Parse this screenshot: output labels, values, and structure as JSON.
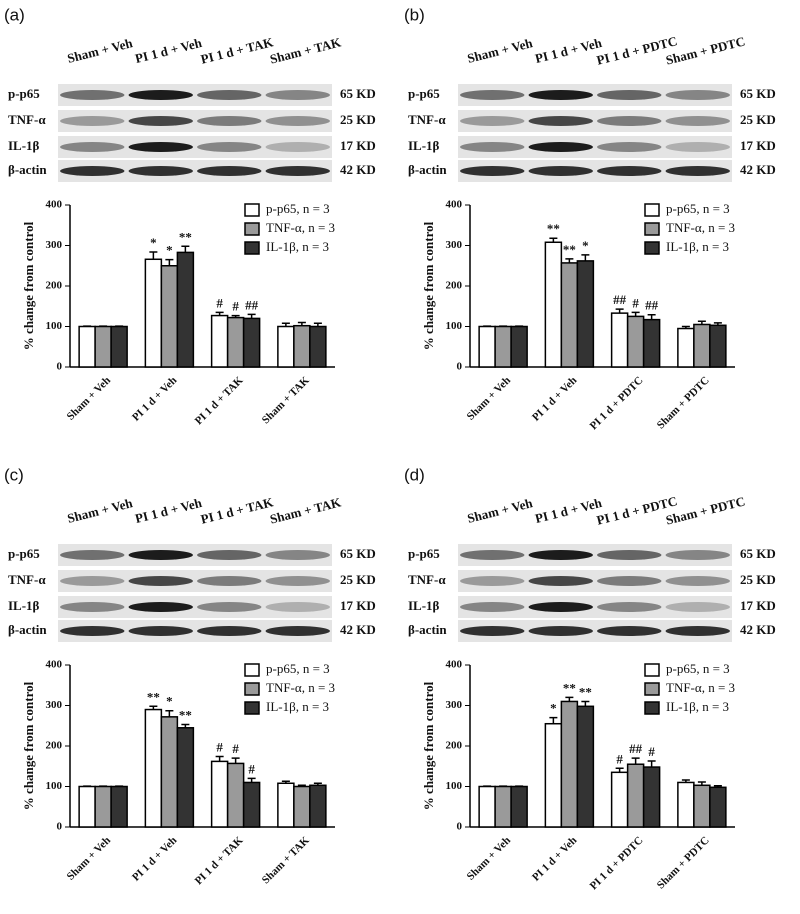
{
  "chart_data": [
    {
      "type": "bar",
      "panel": "(a)",
      "blot": {
        "lanes": [
          "Sham + Veh",
          "PI 1 d + Veh",
          "PI 1 d + TAK",
          "Sham + TAK"
        ],
        "rows": [
          "p-p65",
          "TNF-α",
          "IL-1β",
          "β-actin"
        ],
        "sizes": [
          "65 KD",
          "25 KD",
          "17 KD",
          "42 KD"
        ]
      },
      "ylabel": "% change from control",
      "categories": [
        "Sham + Veh",
        "PI 1 d + Veh",
        "PI 1 d + TAK",
        "Sham + TAK"
      ],
      "ylim": [
        0,
        400
      ],
      "yticks": [
        0,
        100,
        200,
        300,
        400
      ],
      "series": [
        {
          "name": "p-p65, n = 3",
          "color": "#ffffff",
          "values": [
            100,
            266,
            127,
            100
          ],
          "errors": [
            1,
            18,
            8,
            8
          ],
          "annotations": [
            null,
            "*",
            "#",
            null
          ]
        },
        {
          "name": "TNF-α, n = 3",
          "color": "#9a9a9a",
          "values": [
            100,
            250,
            122,
            102
          ],
          "errors": [
            1,
            15,
            5,
            8
          ],
          "annotations": [
            null,
            "*",
            "#",
            null
          ]
        },
        {
          "name": "IL-1β, n = 3",
          "color": "#333333",
          "values": [
            100,
            283,
            120,
            100
          ],
          "errors": [
            1,
            15,
            10,
            8
          ],
          "annotations": [
            null,
            "**",
            "##",
            null
          ]
        }
      ]
    },
    {
      "type": "bar",
      "panel": "(b)",
      "blot": {
        "lanes": [
          "Sham + Veh",
          "PI 1 d + Veh",
          "PI 1 d + PDTC",
          "Sham + PDTC"
        ],
        "rows": [
          "p-p65",
          "TNF-α",
          "IL-1β",
          "β-actin"
        ],
        "sizes": [
          "65 KD",
          "25 KD",
          "17 KD",
          "42 KD"
        ]
      },
      "ylabel": "% change from control",
      "categories": [
        "Sham + Veh",
        "PI 1 d + Veh",
        "PI 1 d + PDTC",
        "Sham + PDTC"
      ],
      "ylim": [
        0,
        400
      ],
      "yticks": [
        0,
        100,
        200,
        300,
        400
      ],
      "series": [
        {
          "name": "p-p65, n = 3",
          "color": "#ffffff",
          "values": [
            100,
            308,
            133,
            95
          ],
          "errors": [
            1,
            10,
            10,
            5
          ],
          "annotations": [
            null,
            "**",
            "##",
            null
          ]
        },
        {
          "name": "TNF-α, n = 3",
          "color": "#9a9a9a",
          "values": [
            100,
            257,
            125,
            105
          ],
          "errors": [
            1,
            10,
            10,
            8
          ],
          "annotations": [
            null,
            "**",
            "#",
            null
          ]
        },
        {
          "name": "IL-1β, n = 3",
          "color": "#333333",
          "values": [
            100,
            262,
            117,
            103
          ],
          "errors": [
            1,
            15,
            12,
            6
          ],
          "annotations": [
            null,
            "*",
            "##",
            null
          ]
        }
      ]
    },
    {
      "type": "bar",
      "panel": "(c)",
      "blot": {
        "lanes": [
          "Sham + Veh",
          "PI 1 d + Veh",
          "PI 1 d + TAK",
          "Sham + TAK"
        ],
        "rows": [
          "p-p65",
          "TNF-α",
          "IL-1β",
          "β-actin"
        ],
        "sizes": [
          "65 KD",
          "25 KD",
          "17 KD",
          "42 KD"
        ]
      },
      "ylabel": "% change from control",
      "categories": [
        "Sham + Veh",
        "PI 1 d + Veh",
        "PI 1 d + TAK",
        "Sham + TAK"
      ],
      "ylim": [
        0,
        400
      ],
      "yticks": [
        0,
        100,
        200,
        300,
        400
      ],
      "series": [
        {
          "name": "p-p65, n = 3",
          "color": "#ffffff",
          "values": [
            100,
            290,
            162,
            108
          ],
          "errors": [
            1,
            8,
            12,
            5
          ],
          "annotations": [
            null,
            "**",
            "#",
            null
          ]
        },
        {
          "name": "TNF-α, n = 3",
          "color": "#9a9a9a",
          "values": [
            100,
            272,
            157,
            100
          ],
          "errors": [
            1,
            15,
            13,
            3
          ],
          "annotations": [
            null,
            "*",
            "#",
            null
          ]
        },
        {
          "name": "IL-1β, n = 3",
          "color": "#333333",
          "values": [
            100,
            245,
            110,
            103
          ],
          "errors": [
            1,
            8,
            10,
            5
          ],
          "annotations": [
            null,
            "**",
            "#",
            null
          ]
        }
      ]
    },
    {
      "type": "bar",
      "panel": "(d)",
      "blot": {
        "lanes": [
          "Sham + Veh",
          "PI 1 d + Veh",
          "PI 1 d + PDTC",
          "Sham + PDTC"
        ],
        "rows": [
          "p-p65",
          "TNF-α",
          "IL-1β",
          "β-actin"
        ],
        "sizes": [
          "65 KD",
          "25 KD",
          "17 KD",
          "42 KD"
        ]
      },
      "ylabel": "% change from control",
      "categories": [
        "Sham + Veh",
        "PI 1 d + Veh",
        "PI 1 d + PDTC",
        "Sham + PDTC"
      ],
      "ylim": [
        0,
        400
      ],
      "yticks": [
        0,
        100,
        200,
        300,
        400
      ],
      "series": [
        {
          "name": "p-p65, n = 3",
          "color": "#ffffff",
          "values": [
            100,
            255,
            135,
            110
          ],
          "errors": [
            1,
            15,
            10,
            6
          ],
          "annotations": [
            null,
            "*",
            "#",
            null
          ]
        },
        {
          "name": "TNF-α, n = 3",
          "color": "#9a9a9a",
          "values": [
            100,
            310,
            155,
            103
          ],
          "errors": [
            1,
            10,
            15,
            8
          ],
          "annotations": [
            null,
            "**",
            "##",
            null
          ]
        },
        {
          "name": "IL-1β, n = 3",
          "color": "#333333",
          "values": [
            100,
            298,
            148,
            98
          ],
          "errors": [
            1,
            12,
            15,
            4
          ],
          "annotations": [
            null,
            "**",
            "#",
            null
          ]
        }
      ]
    }
  ]
}
